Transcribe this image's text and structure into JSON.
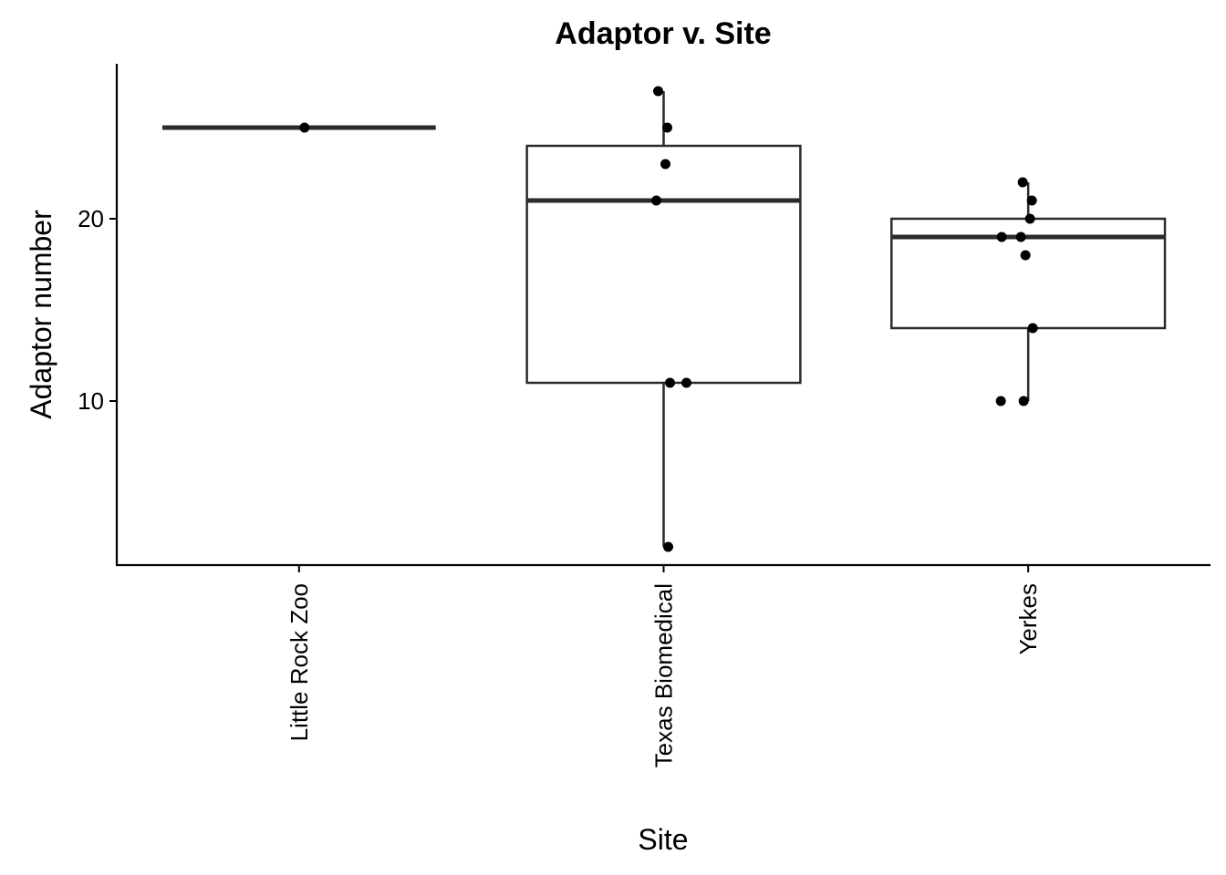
{
  "chart_data": {
    "type": "box",
    "title": "Adaptor v. Site",
    "xlabel": "Site",
    "ylabel": "Adaptor number",
    "ylim": [
      1,
      28.5
    ],
    "yticks": [
      10,
      20
    ],
    "grid": false,
    "categories": [
      "Little Rock Zoo",
      "Texas Biomedical",
      "Yerkes"
    ],
    "boxes": [
      {
        "category": "Little Rock Zoo",
        "min": 25,
        "q1": 25,
        "median": 25,
        "q3": 25,
        "max": 25
      },
      {
        "category": "Texas Biomedical",
        "min": 2,
        "q1": 11,
        "median": 21,
        "q3": 24,
        "max": 27
      },
      {
        "category": "Yerkes",
        "min": 10,
        "q1": 14,
        "median": 19,
        "q3": 20,
        "max": 22
      }
    ],
    "points": [
      {
        "category": "Little Rock Zoo",
        "values": [
          25
        ]
      },
      {
        "category": "Texas Biomedical",
        "values": [
          27,
          25,
          23,
          21,
          11,
          11,
          2
        ]
      },
      {
        "category": "Yerkes",
        "values": [
          22,
          21,
          20,
          19,
          19,
          18,
          14,
          10,
          10
        ]
      }
    ]
  }
}
